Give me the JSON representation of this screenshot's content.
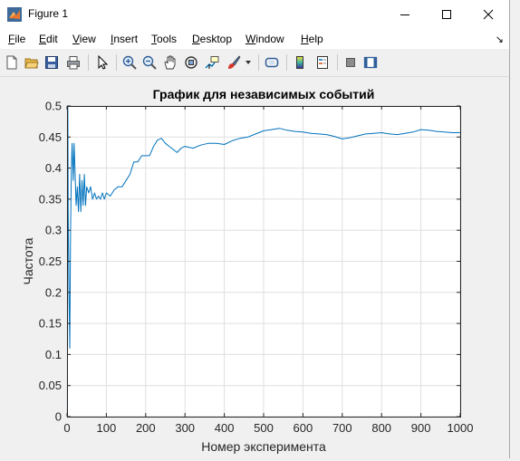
{
  "window": {
    "title": "Figure 1"
  },
  "menu": [
    {
      "key": "F",
      "rest": "ile"
    },
    {
      "key": "E",
      "rest": "dit"
    },
    {
      "key": "V",
      "rest": "iew"
    },
    {
      "key": "I",
      "rest": "nsert"
    },
    {
      "key": "T",
      "rest": "ools"
    },
    {
      "key": "D",
      "rest": "esktop"
    },
    {
      "key": "W",
      "rest": "indow"
    },
    {
      "key": "H",
      "rest": "elp"
    }
  ],
  "toolbar_icons": [
    "new-figure-icon",
    "open-file-icon",
    "save-icon",
    "print-icon",
    "select-arrow-icon",
    "zoom-in-icon",
    "zoom-out-icon",
    "pan-hand-icon",
    "rotate-3d-icon",
    "data-cursor-icon",
    "brush-icon",
    "link-plot-icon",
    "insert-colorbar-icon",
    "insert-legend-icon",
    "hide-plot-tools-icon",
    "show-plot-tools-icon"
  ],
  "chart_data": {
    "type": "line",
    "title": "График для независимых событий",
    "xlabel": "Номер эксперимента",
    "ylabel": "Частота",
    "xlim": [
      0,
      1000
    ],
    "ylim": [
      0,
      0.5
    ],
    "xticks": [
      "0",
      "100",
      "200",
      "300",
      "400",
      "500",
      "600",
      "700",
      "800",
      "900",
      "1000"
    ],
    "yticks": [
      "0",
      "0.05",
      "0.1",
      "0.15",
      "0.2",
      "0.25",
      "0.3",
      "0.35",
      "0.4",
      "0.45",
      "0.5"
    ],
    "grid": true,
    "series": [
      {
        "color": "#0072bd",
        "x": [
          1,
          2,
          3,
          5,
          7,
          9,
          11,
          13,
          16,
          18,
          20,
          23,
          26,
          29,
          32,
          35,
          38,
          41,
          44,
          47,
          50,
          55,
          60,
          65,
          70,
          75,
          80,
          85,
          90,
          95,
          100,
          110,
          120,
          130,
          140,
          150,
          160,
          170,
          180,
          190,
          200,
          210,
          220,
          230,
          240,
          250,
          260,
          270,
          280,
          290,
          300,
          320,
          340,
          360,
          380,
          400,
          420,
          440,
          460,
          480,
          500,
          520,
          540,
          560,
          580,
          600,
          620,
          640,
          660,
          680,
          700,
          720,
          740,
          760,
          780,
          800,
          820,
          840,
          860,
          880,
          900,
          920,
          940,
          960,
          980,
          1000
        ],
        "y": [
          0.0,
          0.5,
          0.33,
          0.2,
          0.11,
          0.3,
          0.4,
          0.44,
          0.38,
          0.44,
          0.4,
          0.34,
          0.37,
          0.33,
          0.39,
          0.33,
          0.38,
          0.34,
          0.39,
          0.34,
          0.37,
          0.36,
          0.37,
          0.35,
          0.36,
          0.35,
          0.355,
          0.35,
          0.36,
          0.35,
          0.36,
          0.355,
          0.365,
          0.37,
          0.37,
          0.38,
          0.39,
          0.41,
          0.41,
          0.42,
          0.42,
          0.42,
          0.435,
          0.445,
          0.448,
          0.44,
          0.435,
          0.43,
          0.425,
          0.432,
          0.435,
          0.432,
          0.437,
          0.44,
          0.44,
          0.438,
          0.444,
          0.448,
          0.45,
          0.455,
          0.46,
          0.462,
          0.464,
          0.461,
          0.459,
          0.458,
          0.456,
          0.455,
          0.454,
          0.451,
          0.447,
          0.449,
          0.452,
          0.455,
          0.456,
          0.457,
          0.455,
          0.454,
          0.456,
          0.458,
          0.462,
          0.461,
          0.459,
          0.458,
          0.457,
          0.457
        ]
      }
    ]
  }
}
